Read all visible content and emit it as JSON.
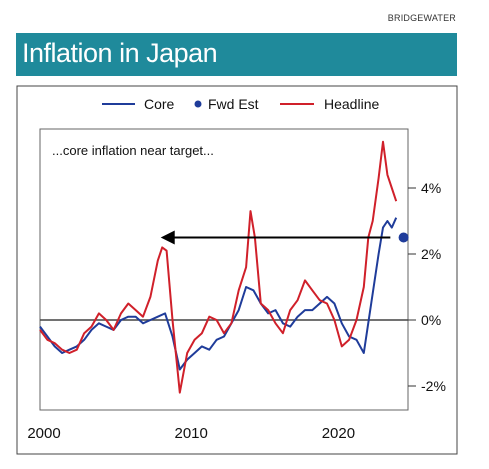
{
  "brand": "BRIDGEWATER",
  "header": {
    "title": "Inflation in Japan"
  },
  "colors": {
    "banner": "#1f8a9b",
    "core": "#1f3c9a",
    "headline": "#d0202a",
    "fwd": "#1f3c9a",
    "arrow": "#000000"
  },
  "chart_data": {
    "type": "line",
    "title": "Inflation in Japan",
    "annotation": "...core inflation near target...",
    "legend": [
      "Core",
      "Fwd Est",
      "Headline"
    ],
    "legend_position": "top",
    "xlim": [
      2000,
      2025
    ],
    "ylim": [
      -3,
      6
    ],
    "x_ticks": [
      2000,
      2010,
      2020
    ],
    "x_tick_labels": [
      "2000",
      "2010",
      "2020"
    ],
    "y_ticks": [
      4,
      2,
      0,
      -2
    ],
    "y_tick_labels": [
      "4%",
      "2%",
      "0%",
      "-2%"
    ],
    "grid": false,
    "series": [
      {
        "name": "Core",
        "x": [
          2000,
          2000.5,
          2001,
          2001.5,
          2002,
          2002.5,
          2003,
          2003.5,
          2004,
          2004.5,
          2005,
          2005.5,
          2006,
          2006.5,
          2007,
          2007.5,
          2008,
          2008.5,
          2009,
          2009.5,
          2010,
          2010.5,
          2011,
          2011.5,
          2012,
          2012.5,
          2013,
          2013.5,
          2014,
          2014.5,
          2015,
          2015.5,
          2016,
          2016.5,
          2017,
          2017.5,
          2018,
          2018.5,
          2019,
          2019.5,
          2020,
          2020.5,
          2021,
          2021.5,
          2022,
          2022.5,
          2023,
          2023.3,
          2023.6,
          2023.9,
          2024.2
        ],
        "values": [
          -0.2,
          -0.5,
          -0.8,
          -1.0,
          -0.9,
          -0.8,
          -0.6,
          -0.3,
          -0.1,
          -0.2,
          -0.3,
          0.0,
          0.1,
          0.1,
          -0.1,
          0.0,
          0.1,
          0.2,
          -0.5,
          -1.5,
          -1.2,
          -1.0,
          -0.8,
          -0.9,
          -0.6,
          -0.5,
          -0.1,
          0.3,
          1.0,
          0.9,
          0.5,
          0.2,
          0.3,
          -0.1,
          -0.2,
          0.1,
          0.3,
          0.3,
          0.5,
          0.7,
          0.5,
          -0.1,
          -0.5,
          -0.6,
          -1.0,
          0.5,
          2.0,
          2.8,
          3.0,
          2.8,
          3.1
        ]
      },
      {
        "name": "Headline",
        "x": [
          2000,
          2000.5,
          2001,
          2001.5,
          2002,
          2002.5,
          2003,
          2003.5,
          2004,
          2004.5,
          2005,
          2005.5,
          2006,
          2006.5,
          2007,
          2007.5,
          2008,
          2008.3,
          2008.6,
          2009,
          2009.5,
          2010,
          2010.5,
          2011,
          2011.5,
          2012,
          2012.5,
          2013,
          2013.5,
          2014,
          2014.3,
          2014.6,
          2015,
          2015.5,
          2016,
          2016.5,
          2017,
          2017.5,
          2018,
          2018.5,
          2019,
          2019.5,
          2020,
          2020.5,
          2021,
          2021.5,
          2022,
          2022.3,
          2022.6,
          2023,
          2023.3,
          2023.6,
          2023.9,
          2024.2
        ],
        "values": [
          -0.3,
          -0.6,
          -0.7,
          -0.9,
          -1.0,
          -0.9,
          -0.4,
          -0.2,
          0.2,
          0.0,
          -0.3,
          0.2,
          0.5,
          0.3,
          0.1,
          0.7,
          1.8,
          2.2,
          2.1,
          0.0,
          -2.2,
          -1.0,
          -0.6,
          -0.4,
          0.1,
          0.0,
          -0.4,
          -0.1,
          0.9,
          1.6,
          3.3,
          2.5,
          0.5,
          0.3,
          -0.1,
          -0.4,
          0.3,
          0.6,
          1.2,
          0.9,
          0.6,
          0.5,
          0.0,
          -0.8,
          -0.6,
          0.0,
          1.0,
          2.5,
          3.0,
          4.3,
          5.4,
          4.4,
          4.0,
          3.6
        ]
      },
      {
        "name": "Fwd Est",
        "x": [
          2024.7
        ],
        "values": [
          2.5
        ]
      }
    ],
    "arrow": {
      "from": [
        2023.8,
        2.5
      ],
      "to": [
        2008.2,
        2.5
      ]
    }
  }
}
